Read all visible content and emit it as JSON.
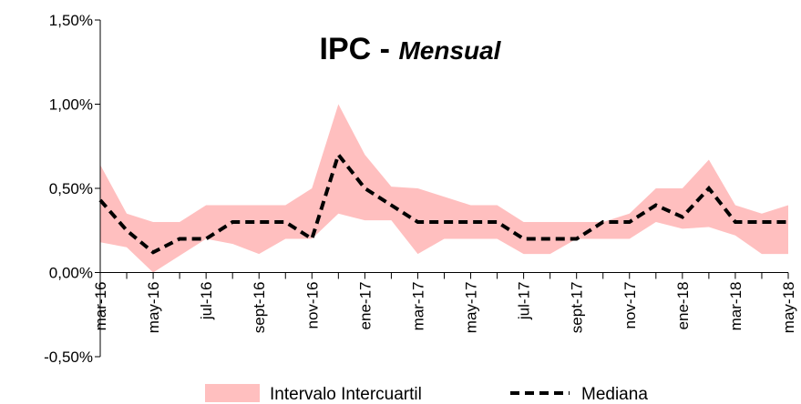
{
  "chart_data": {
    "type": "line",
    "title": [
      "IPC -",
      "Mensual"
    ],
    "categories": [
      "mar-16",
      null,
      "may-16",
      null,
      "jul-16",
      null,
      "sept-16",
      null,
      "nov-16",
      null,
      "ene-17",
      null,
      "mar-17",
      null,
      "may-17",
      null,
      "jul-17",
      null,
      "sept-17",
      null,
      "nov-17",
      null,
      "ene-18",
      null,
      "mar-18",
      null,
      "may-18"
    ],
    "series": [
      {
        "name": "Intervalo Intercuartil",
        "color": "#ffbfbf",
        "low": [
          0.18,
          0.15,
          0.0,
          0.1,
          0.2,
          0.17,
          0.11,
          0.2,
          0.2,
          0.35,
          0.31,
          0.31,
          0.11,
          0.2,
          0.2,
          0.2,
          0.11,
          0.11,
          0.2,
          0.2,
          0.2,
          0.3,
          0.26,
          0.27,
          0.22,
          0.11,
          0.11
        ],
        "high": [
          0.64,
          0.35,
          0.3,
          0.3,
          0.4,
          0.4,
          0.4,
          0.4,
          0.5,
          1.0,
          0.7,
          0.51,
          0.5,
          0.45,
          0.4,
          0.4,
          0.3,
          0.3,
          0.3,
          0.3,
          0.35,
          0.5,
          0.5,
          0.67,
          0.4,
          0.35,
          0.4
        ]
      },
      {
        "name": "Mediana",
        "color": "#000000",
        "dashed": true,
        "values": [
          0.43,
          0.25,
          0.12,
          0.2,
          0.2,
          0.3,
          0.3,
          0.3,
          0.2,
          0.7,
          0.5,
          0.4,
          0.3,
          0.3,
          0.3,
          0.3,
          0.2,
          0.2,
          0.2,
          0.3,
          0.3,
          0.4,
          0.33,
          0.5,
          0.3,
          0.3,
          0.3
        ]
      }
    ],
    "ylim": [
      -0.5,
      1.5
    ],
    "yticks": [
      {
        "value": -0.5,
        "label": "-0,50%"
      },
      {
        "value": 0,
        "label": "0,00%"
      },
      {
        "value": 0.5,
        "label": "0,50%"
      },
      {
        "value": 1.0,
        "label": "1,00%"
      },
      {
        "value": 1.5,
        "label": "1,50%"
      }
    ],
    "legend": "bottom"
  }
}
